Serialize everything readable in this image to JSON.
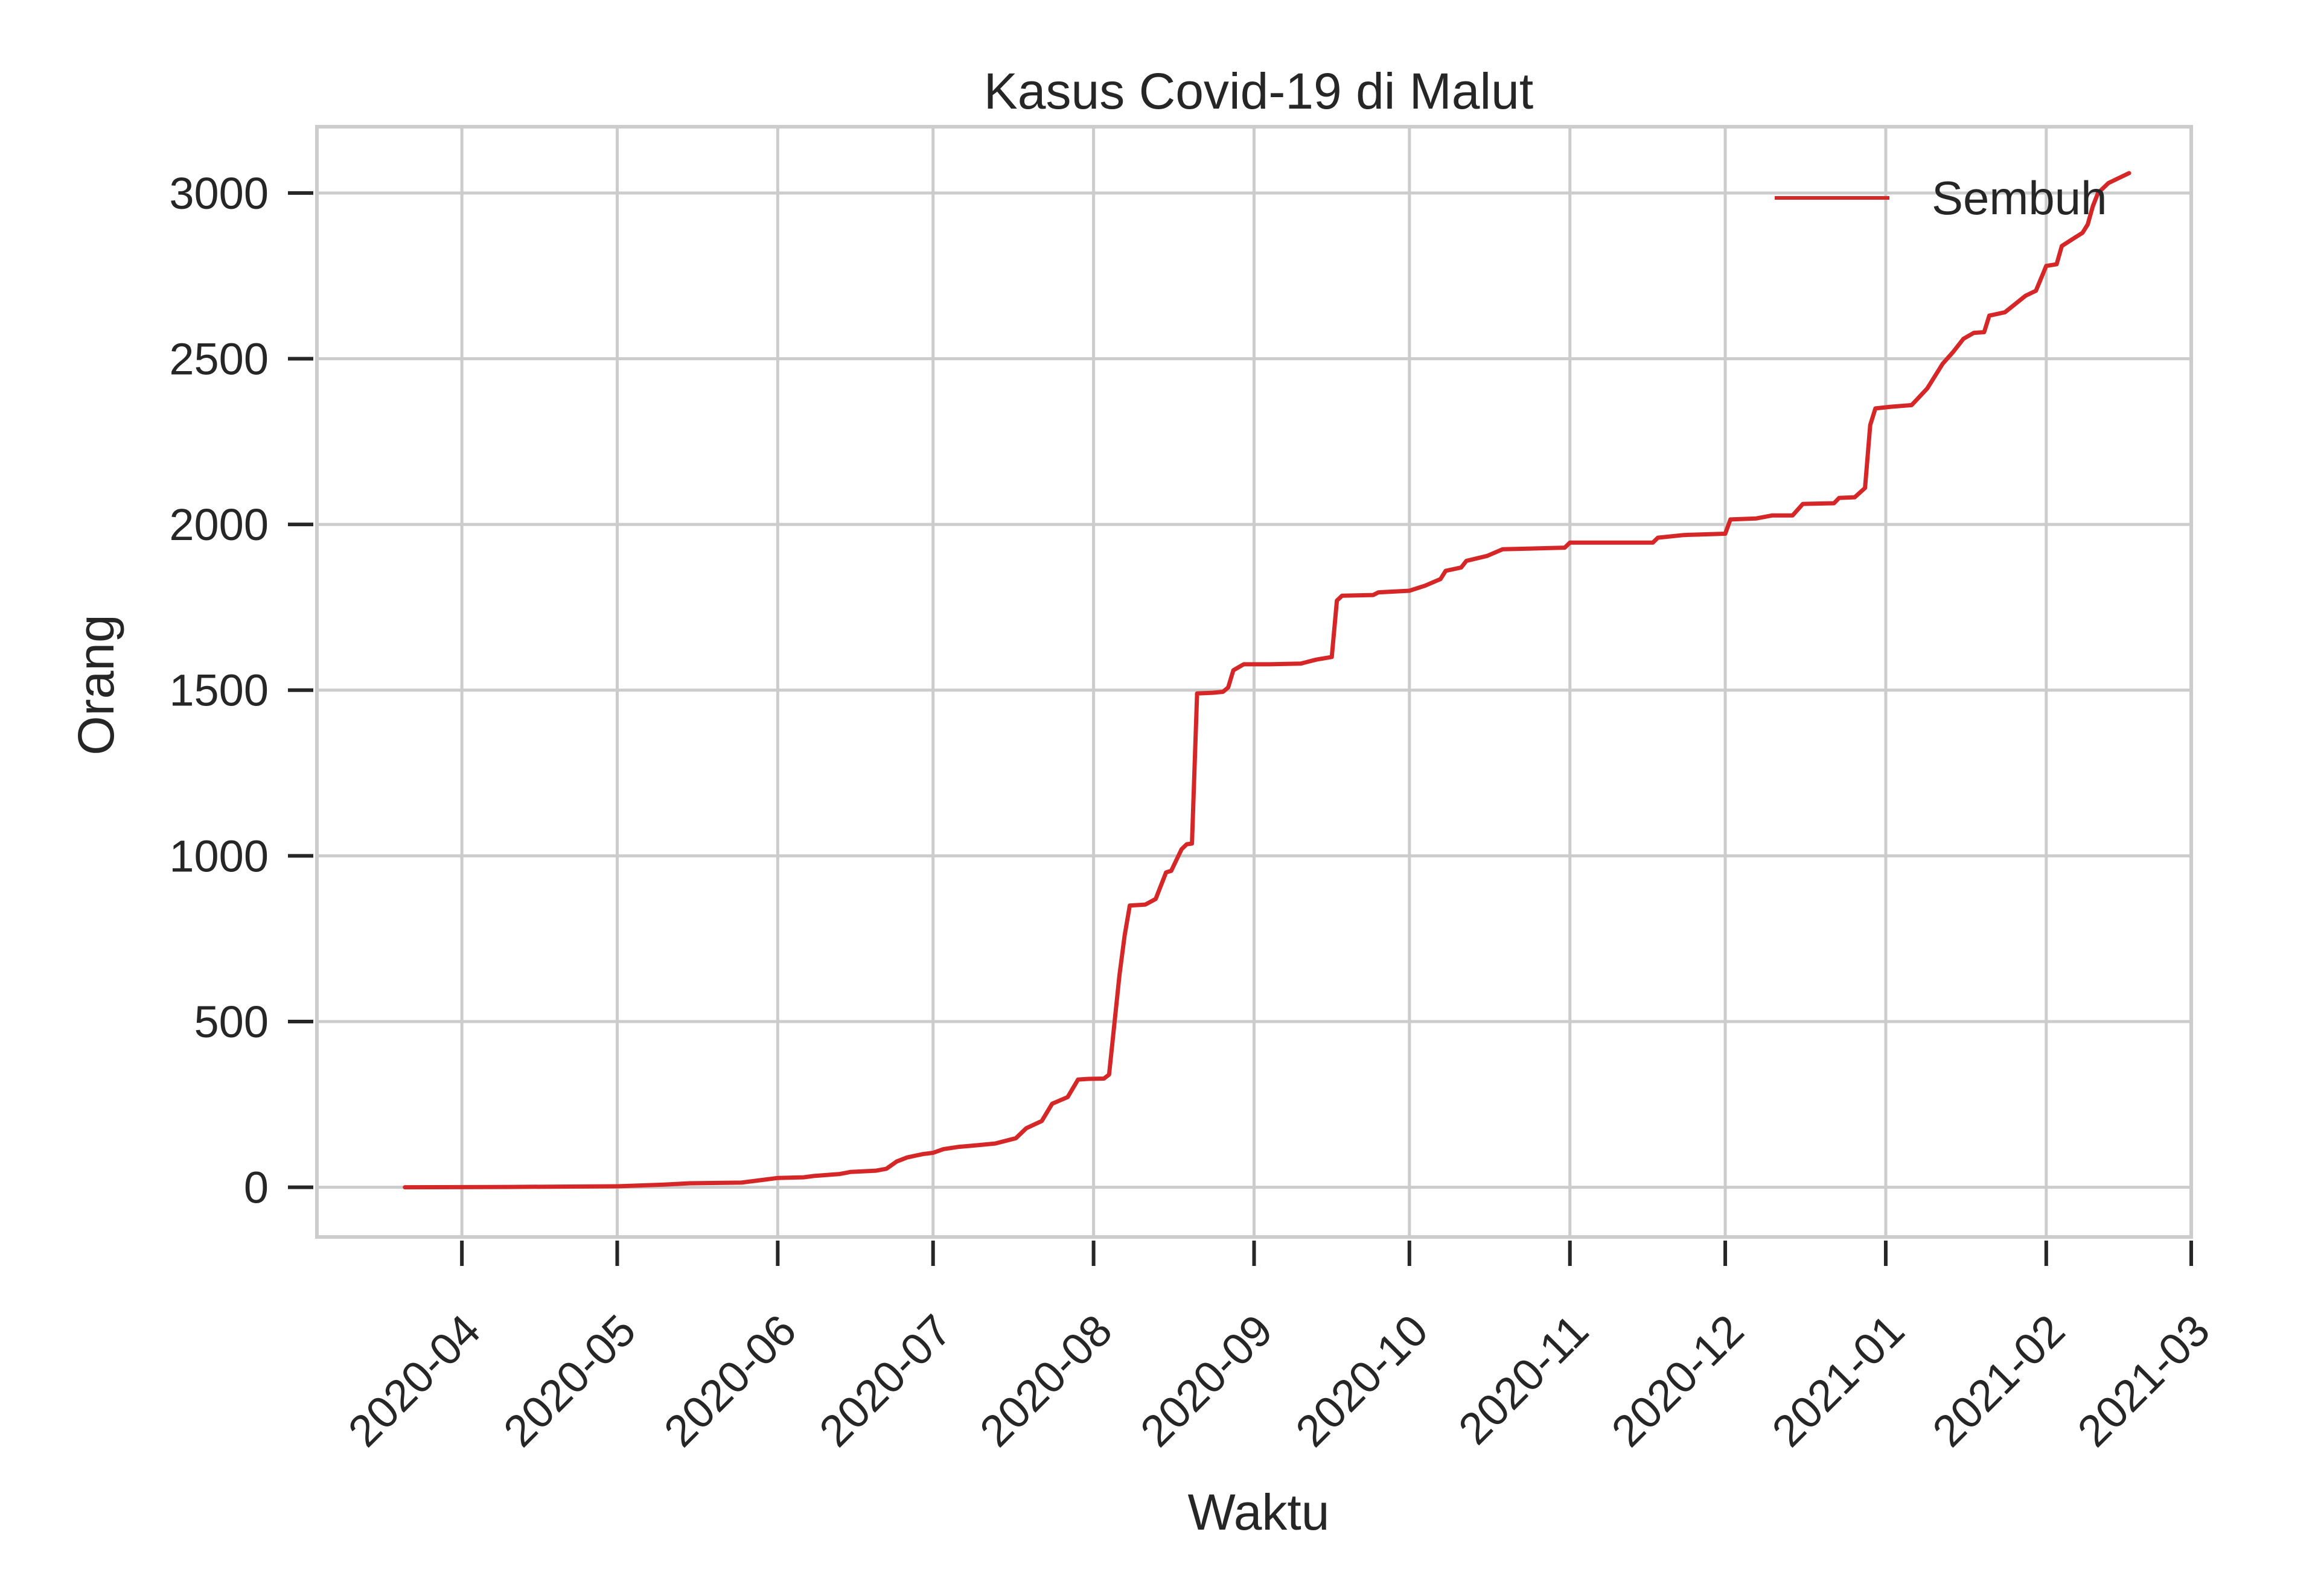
{
  "chart_data": {
    "type": "line",
    "title": "Kasus Covid-19 di Malut",
    "xlabel": "Waktu",
    "ylabel": "Orang",
    "x_type": "date",
    "xlim": [
      "2020-03-04",
      "2021-03-01"
    ],
    "ylim": [
      -150,
      3200
    ],
    "x_ticks": [
      "2020-04",
      "2020-05",
      "2020-06",
      "2020-07",
      "2020-08",
      "2020-09",
      "2020-10",
      "2020-11",
      "2020-12",
      "2021-01",
      "2021-02",
      "2021-03"
    ],
    "y_ticks": [
      0,
      500,
      1000,
      1500,
      2000,
      2500,
      3000
    ],
    "grid": true,
    "legend": {
      "position": "top-right",
      "entries": [
        "Sembuh"
      ]
    },
    "colors": {
      "Sembuh": "#d62728",
      "grid": "#cccccc",
      "axes": "#cccccc",
      "ticks": "#262626"
    },
    "series": [
      {
        "name": "Sembuh",
        "color": "#d62728",
        "points": [
          [
            "2020-03-21",
            0
          ],
          [
            "2020-04-10",
            1
          ],
          [
            "2020-05-01",
            3
          ],
          [
            "2020-05-10",
            8
          ],
          [
            "2020-05-15",
            12
          ],
          [
            "2020-05-25",
            14
          ],
          [
            "2020-05-29",
            22
          ],
          [
            "2020-06-01",
            28
          ],
          [
            "2020-06-06",
            30
          ],
          [
            "2020-06-08",
            34
          ],
          [
            "2020-06-13",
            40
          ],
          [
            "2020-06-15",
            46
          ],
          [
            "2020-06-20",
            50
          ],
          [
            "2020-06-22",
            56
          ],
          [
            "2020-06-24",
            78
          ],
          [
            "2020-06-26",
            90
          ],
          [
            "2020-06-29",
            100
          ],
          [
            "2020-07-01",
            104
          ],
          [
            "2020-07-03",
            115
          ],
          [
            "2020-07-06",
            122
          ],
          [
            "2020-07-09",
            126
          ],
          [
            "2020-07-13",
            132
          ],
          [
            "2020-07-17",
            148
          ],
          [
            "2020-07-19",
            178
          ],
          [
            "2020-07-22",
            200
          ],
          [
            "2020-07-24",
            252
          ],
          [
            "2020-07-27",
            272
          ],
          [
            "2020-07-29",
            325
          ],
          [
            "2020-07-31",
            327
          ],
          [
            "2020-08-03",
            328
          ],
          [
            "2020-08-04",
            340
          ],
          [
            "2020-08-06",
            640
          ],
          [
            "2020-08-07",
            760
          ],
          [
            "2020-08-08",
            850
          ],
          [
            "2020-08-11",
            853
          ],
          [
            "2020-08-13",
            870
          ],
          [
            "2020-08-15",
            950
          ],
          [
            "2020-08-16",
            955
          ],
          [
            "2020-08-18",
            1020
          ],
          [
            "2020-08-19",
            1035
          ],
          [
            "2020-08-20",
            1037
          ],
          [
            "2020-08-21",
            1490
          ],
          [
            "2020-08-24",
            1492
          ],
          [
            "2020-08-26",
            1495
          ],
          [
            "2020-08-27",
            1508
          ],
          [
            "2020-08-28",
            1560
          ],
          [
            "2020-08-30",
            1578
          ],
          [
            "2020-09-04",
            1578
          ],
          [
            "2020-09-10",
            1580
          ],
          [
            "2020-09-13",
            1592
          ],
          [
            "2020-09-16",
            1600
          ],
          [
            "2020-09-17",
            1770
          ],
          [
            "2020-09-18",
            1785
          ],
          [
            "2020-09-24",
            1787
          ],
          [
            "2020-09-25",
            1795
          ],
          [
            "2020-10-01",
            1800
          ],
          [
            "2020-10-04",
            1815
          ],
          [
            "2020-10-07",
            1835
          ],
          [
            "2020-10-08",
            1860
          ],
          [
            "2020-10-11",
            1870
          ],
          [
            "2020-10-12",
            1890
          ],
          [
            "2020-10-16",
            1905
          ],
          [
            "2020-10-19",
            1925
          ],
          [
            "2020-10-31",
            1930
          ],
          [
            "2020-11-01",
            1945
          ],
          [
            "2020-11-17",
            1945
          ],
          [
            "2020-11-18",
            1960
          ],
          [
            "2020-11-23",
            1968
          ],
          [
            "2020-12-01",
            1972
          ],
          [
            "2020-12-02",
            2015
          ],
          [
            "2020-12-07",
            2018
          ],
          [
            "2020-12-10",
            2027
          ],
          [
            "2020-12-14",
            2027
          ],
          [
            "2020-12-16",
            2062
          ],
          [
            "2020-12-22",
            2064
          ],
          [
            "2020-12-23",
            2080
          ],
          [
            "2020-12-26",
            2082
          ],
          [
            "2020-12-28",
            2110
          ],
          [
            "2020-12-29",
            2300
          ],
          [
            "2020-12-30",
            2350
          ],
          [
            "2021-01-02",
            2355
          ],
          [
            "2021-01-06",
            2360
          ],
          [
            "2021-01-09",
            2410
          ],
          [
            "2021-01-12",
            2485
          ],
          [
            "2021-01-14",
            2520
          ],
          [
            "2021-01-16",
            2560
          ],
          [
            "2021-01-18",
            2578
          ],
          [
            "2021-01-20",
            2580
          ],
          [
            "2021-01-21",
            2630
          ],
          [
            "2021-01-24",
            2640
          ],
          [
            "2021-01-26",
            2665
          ],
          [
            "2021-01-28",
            2690
          ],
          [
            "2021-01-30",
            2705
          ],
          [
            "2021-02-01",
            2780
          ],
          [
            "2021-02-03",
            2785
          ],
          [
            "2021-02-04",
            2840
          ],
          [
            "2021-02-06",
            2860
          ],
          [
            "2021-02-08",
            2880
          ],
          [
            "2021-02-09",
            2905
          ],
          [
            "2021-02-10",
            2960
          ],
          [
            "2021-02-11",
            3000
          ],
          [
            "2021-02-13",
            3030
          ],
          [
            "2021-02-15",
            3045
          ],
          [
            "2021-02-17",
            3060
          ]
        ]
      }
    ]
  }
}
